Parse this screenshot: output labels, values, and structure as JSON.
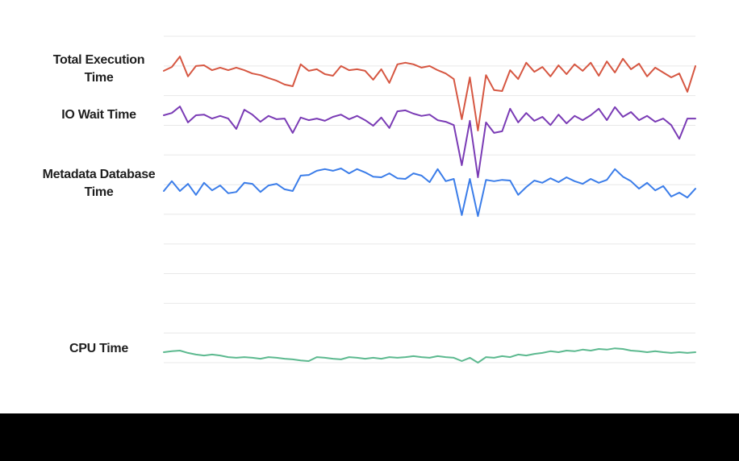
{
  "page": {
    "background": "#ffffff",
    "footer_bar_color": "#000000",
    "label_color": "#1f1f1f"
  },
  "chart_data": {
    "type": "line",
    "title": "",
    "xlabel": "",
    "ylabel": "",
    "legend_position": "left-of-plot inline labels",
    "grid": "horizontal gridlines only",
    "x_axis": {
      "tick_labels_visible": false,
      "num_points": 67
    },
    "y_axis": {
      "tick_labels_visible": false,
      "unit": "relative level (0-100, % of plot height, estimated from pixels; no numeric axis shown)",
      "range": [
        0,
        110
      ],
      "gridline_count": 12,
      "gridline_color": "#e8e8e8"
    },
    "annotations": [],
    "series": [
      {
        "name": "Total Execution Time",
        "label_lines": [
          "Total Execution",
          "Time"
        ],
        "color": "#d65742",
        "values": [
          89.4,
          90.6,
          93.8,
          87.7,
          90.9,
          91.1,
          89.6,
          90.4,
          89.6,
          90.4,
          89.6,
          88.6,
          88.1,
          87.2,
          86.4,
          85.2,
          84.7,
          91.4,
          89.4,
          89.9,
          88.4,
          87.9,
          90.9,
          89.6,
          89.9,
          89.4,
          86.7,
          89.9,
          85.7,
          91.4,
          91.9,
          91.4,
          90.4,
          90.9,
          89.6,
          88.6,
          86.9,
          74.6,
          87.4,
          71.1,
          88.1,
          83.5,
          83.2,
          89.6,
          86.9,
          91.9,
          89.1,
          90.6,
          87.7,
          91.1,
          88.4,
          91.4,
          89.4,
          91.9,
          87.9,
          92.3,
          88.9,
          93.1,
          89.9,
          91.6,
          87.7,
          90.4,
          88.9,
          87.4,
          88.6,
          83.0,
          90.9
        ]
      },
      {
        "name": "IO Wait Time",
        "label_lines": [
          "IO Wait Time"
        ],
        "color": "#7a3bb5",
        "values": [
          75.8,
          76.5,
          78.5,
          73.6,
          75.8,
          76.0,
          74.8,
          75.6,
          74.8,
          71.6,
          77.5,
          76.0,
          73.8,
          75.6,
          74.6,
          74.8,
          70.4,
          75.1,
          74.3,
          74.8,
          74.1,
          75.3,
          76.0,
          74.6,
          75.6,
          74.3,
          72.6,
          75.1,
          71.9,
          77.0,
          77.3,
          76.3,
          75.6,
          76.0,
          74.3,
          73.8,
          72.8,
          60.5,
          74.1,
          56.8,
          73.6,
          70.4,
          70.9,
          77.8,
          73.6,
          76.5,
          74.1,
          75.3,
          72.8,
          76.0,
          73.3,
          75.6,
          74.3,
          75.8,
          77.8,
          74.3,
          78.3,
          75.3,
          76.8,
          74.3,
          75.6,
          73.8,
          74.8,
          72.8,
          68.6,
          74.8,
          74.8
        ]
      },
      {
        "name": "Metadata Database Time",
        "label_lines": [
          "Metadata Database",
          "Time"
        ],
        "color": "#3b7de9",
        "values": [
          52.6,
          55.6,
          52.6,
          54.8,
          51.4,
          55.1,
          52.8,
          54.3,
          51.9,
          52.3,
          55.1,
          54.8,
          52.3,
          54.3,
          54.8,
          53.1,
          52.6,
          57.3,
          57.5,
          58.8,
          59.3,
          58.8,
          59.5,
          58.0,
          59.3,
          58.3,
          57.0,
          56.8,
          58.0,
          56.5,
          56.3,
          58.0,
          57.3,
          55.3,
          59.3,
          55.6,
          56.3,
          45.2,
          56.3,
          44.9,
          56.0,
          55.6,
          56.0,
          55.8,
          51.4,
          53.8,
          55.8,
          55.1,
          56.5,
          55.3,
          56.8,
          55.6,
          54.8,
          56.3,
          55.1,
          56.0,
          59.3,
          57.0,
          55.6,
          53.3,
          55.1,
          52.8,
          54.1,
          50.9,
          52.1,
          50.6,
          53.3
        ]
      },
      {
        "name": "CPU Time",
        "label_lines": [
          "CPU Time"
        ],
        "color": "#5cb98f",
        "values": [
          3.2,
          3.5,
          3.7,
          3.0,
          2.5,
          2.2,
          2.5,
          2.2,
          1.7,
          1.5,
          1.7,
          1.5,
          1.2,
          1.7,
          1.5,
          1.2,
          1.0,
          0.7,
          0.5,
          1.7,
          1.5,
          1.2,
          1.0,
          1.7,
          1.5,
          1.2,
          1.5,
          1.2,
          1.7,
          1.5,
          1.7,
          2.0,
          1.7,
          1.5,
          2.0,
          1.7,
          1.5,
          0.5,
          1.5,
          0.0,
          1.7,
          1.5,
          2.0,
          1.7,
          2.5,
          2.2,
          2.7,
          3.0,
          3.5,
          3.2,
          3.7,
          3.5,
          4.0,
          3.7,
          4.2,
          4.0,
          4.4,
          4.2,
          3.7,
          3.5,
          3.2,
          3.5,
          3.2,
          3.0,
          3.2,
          3.0,
          3.2
        ]
      }
    ]
  }
}
